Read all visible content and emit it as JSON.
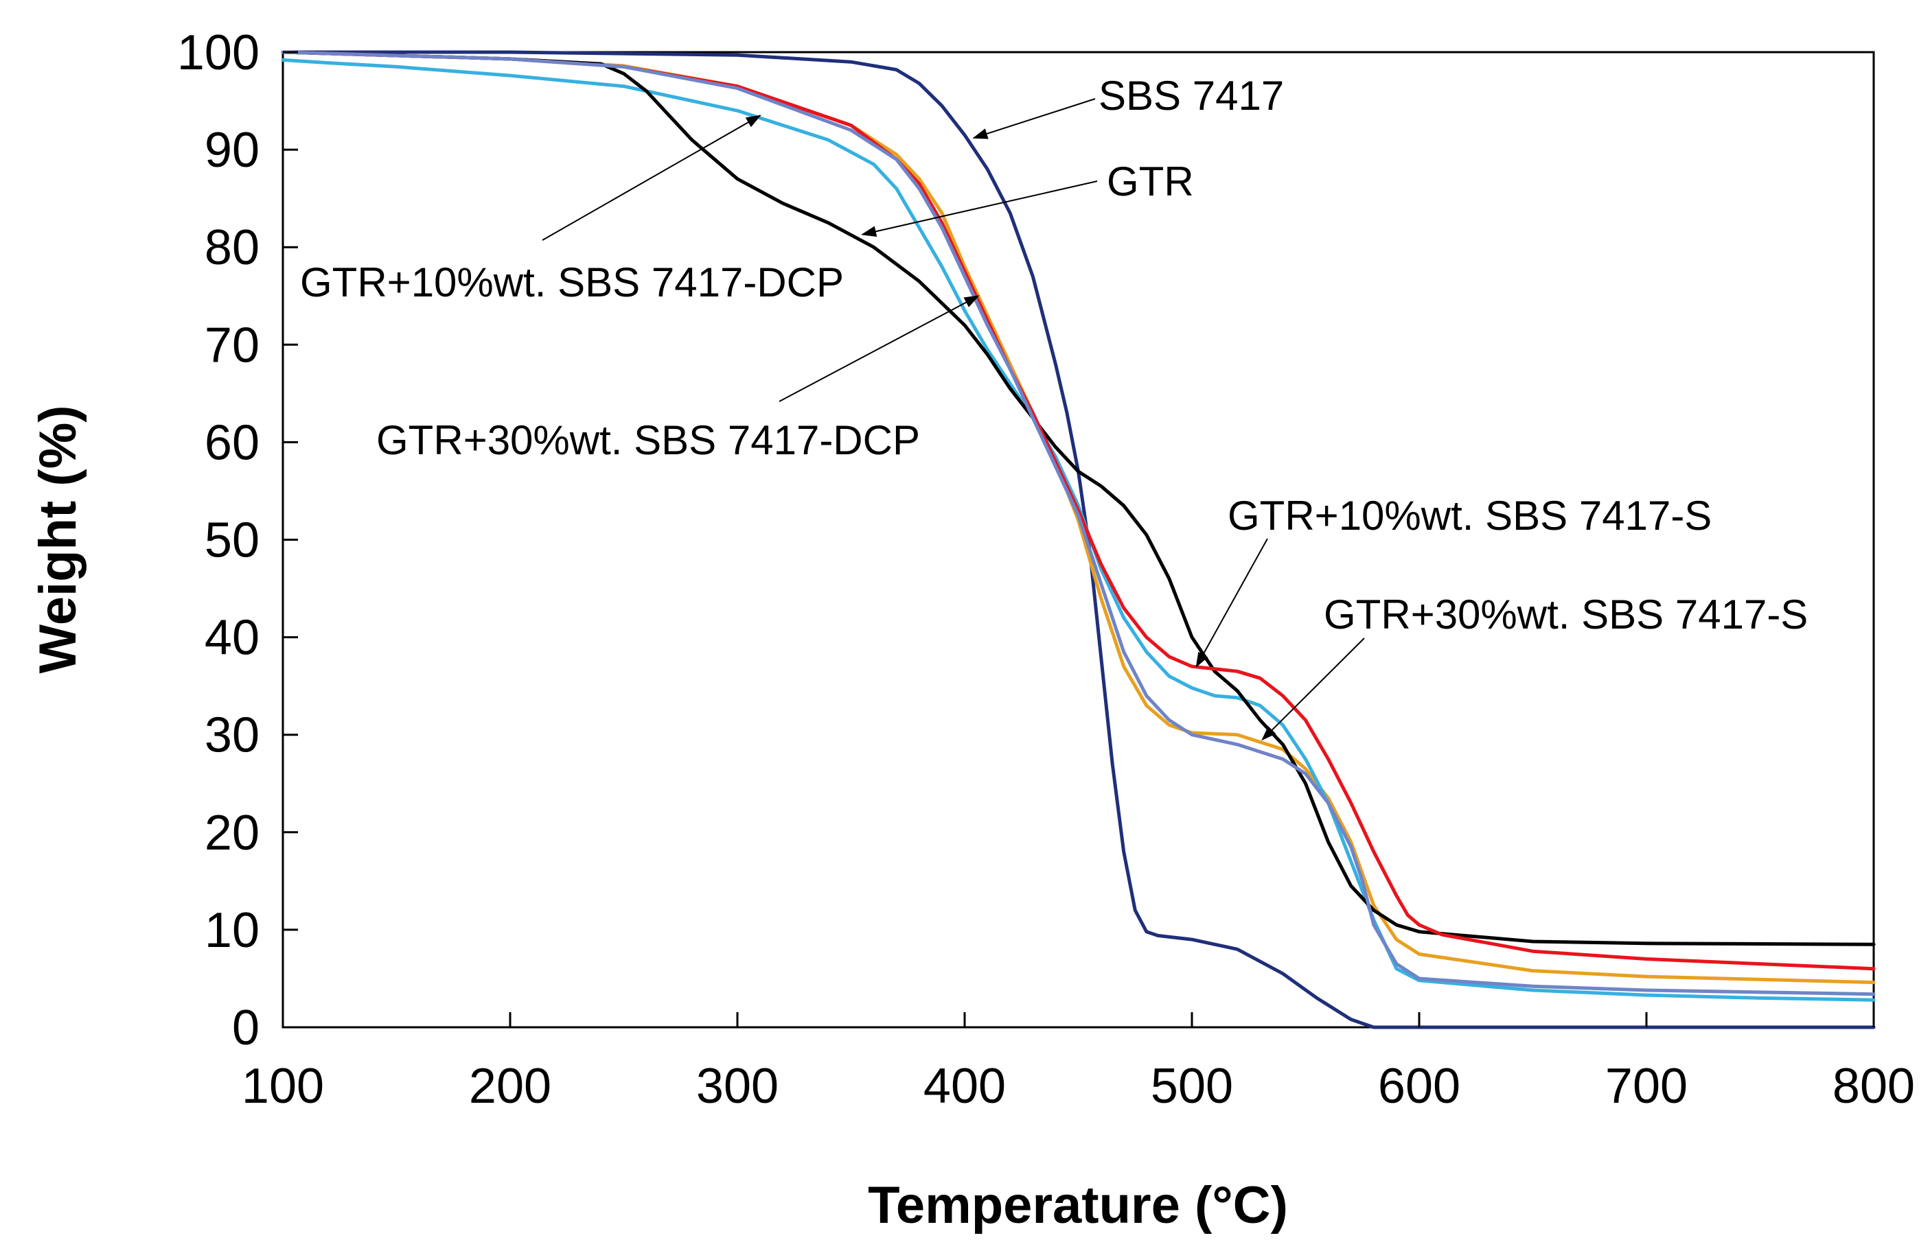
{
  "chart_data": {
    "type": "line",
    "title": "",
    "xlabel": "Temperature (°C)",
    "ylabel": "Weight (%)",
    "xlim": [
      100,
      800
    ],
    "ylim": [
      0,
      100
    ],
    "x_ticks": [
      "100",
      "200",
      "300",
      "400",
      "500",
      "600",
      "700",
      "800"
    ],
    "y_ticks": [
      "0",
      "10",
      "20",
      "30",
      "40",
      "50",
      "60",
      "70",
      "80",
      "90",
      "100"
    ],
    "grid": false,
    "legend": "none",
    "series": [
      {
        "name": "SBS 7417",
        "color": "#1f2f7a",
        "points": [
          [
            100,
            100
          ],
          [
            200,
            100
          ],
          [
            300,
            99.7
          ],
          [
            350,
            99.0
          ],
          [
            370,
            98.2
          ],
          [
            380,
            96.8
          ],
          [
            390,
            94.5
          ],
          [
            400,
            91.5
          ],
          [
            410,
            88.0
          ],
          [
            420,
            83.5
          ],
          [
            430,
            77.0
          ],
          [
            440,
            68.0
          ],
          [
            445,
            63.0
          ],
          [
            450,
            57.0
          ],
          [
            455,
            49.0
          ],
          [
            460,
            38.0
          ],
          [
            465,
            27.0
          ],
          [
            470,
            18.0
          ],
          [
            475,
            12.0
          ],
          [
            480,
            9.8
          ],
          [
            485,
            9.4
          ],
          [
            500,
            9.0
          ],
          [
            520,
            8.0
          ],
          [
            540,
            5.5
          ],
          [
            555,
            3.0
          ],
          [
            570,
            0.8
          ],
          [
            580,
            0
          ],
          [
            650,
            0
          ],
          [
            800,
            0
          ]
        ]
      },
      {
        "name": "GTR",
        "color": "#e8a020",
        "points": [
          [
            100,
            100
          ],
          [
            200,
            99.3
          ],
          [
            250,
            98.6
          ],
          [
            300,
            96.5
          ],
          [
            350,
            92.5
          ],
          [
            370,
            89.5
          ],
          [
            380,
            87.0
          ],
          [
            390,
            83.5
          ],
          [
            400,
            78.0
          ],
          [
            410,
            73.0
          ],
          [
            420,
            68.0
          ],
          [
            430,
            63.0
          ],
          [
            440,
            58.0
          ],
          [
            450,
            52.0
          ],
          [
            460,
            44.0
          ],
          [
            470,
            37.0
          ],
          [
            480,
            33.0
          ],
          [
            490,
            31.0
          ],
          [
            500,
            30.2
          ],
          [
            520,
            30.0
          ],
          [
            540,
            28.5
          ],
          [
            550,
            26.5
          ],
          [
            560,
            23.5
          ],
          [
            570,
            19.0
          ],
          [
            580,
            12.5
          ],
          [
            590,
            9.0
          ],
          [
            600,
            7.5
          ],
          [
            650,
            5.8
          ],
          [
            700,
            5.2
          ],
          [
            800,
            4.6
          ]
        ]
      },
      {
        "name": "GTR+10%wt. SBS 7417-DCP",
        "color": "#36b0e0",
        "points": [
          [
            100,
            99.2
          ],
          [
            120,
            98.9
          ],
          [
            150,
            98.5
          ],
          [
            200,
            97.6
          ],
          [
            250,
            96.5
          ],
          [
            280,
            95.0
          ],
          [
            300,
            94.0
          ],
          [
            320,
            92.5
          ],
          [
            340,
            91.0
          ],
          [
            360,
            88.5
          ],
          [
            370,
            86.0
          ],
          [
            380,
            82.0
          ],
          [
            390,
            78.0
          ],
          [
            400,
            73.5
          ],
          [
            410,
            69.5
          ],
          [
            420,
            66.0
          ],
          [
            430,
            62.5
          ],
          [
            440,
            58.5
          ],
          [
            450,
            53.5
          ],
          [
            460,
            47.0
          ],
          [
            470,
            42.0
          ],
          [
            480,
            38.5
          ],
          [
            490,
            36.0
          ],
          [
            500,
            34.8
          ],
          [
            510,
            34.0
          ],
          [
            520,
            33.8
          ],
          [
            530,
            33.0
          ],
          [
            540,
            31.0
          ],
          [
            550,
            27.5
          ],
          [
            560,
            23.0
          ],
          [
            570,
            17.0
          ],
          [
            580,
            11.0
          ],
          [
            585,
            8.5
          ],
          [
            590,
            6.0
          ],
          [
            600,
            4.8
          ],
          [
            650,
            3.8
          ],
          [
            700,
            3.3
          ],
          [
            750,
            3.0
          ],
          [
            800,
            2.8
          ]
        ]
      },
      {
        "name": "GTR+30%wt. SBS 7417-DCP",
        "color": "#000000",
        "points": [
          [
            100,
            100
          ],
          [
            200,
            99.3
          ],
          [
            240,
            98.8
          ],
          [
            250,
            97.8
          ],
          [
            260,
            96.0
          ],
          [
            270,
            93.5
          ],
          [
            280,
            91.0
          ],
          [
            290,
            89.0
          ],
          [
            300,
            87.0
          ],
          [
            320,
            84.5
          ],
          [
            340,
            82.5
          ],
          [
            360,
            80.0
          ],
          [
            380,
            76.5
          ],
          [
            400,
            72.0
          ],
          [
            410,
            69.0
          ],
          [
            420,
            65.5
          ],
          [
            430,
            62.5
          ],
          [
            440,
            59.5
          ],
          [
            450,
            57.0
          ],
          [
            460,
            55.5
          ],
          [
            470,
            53.5
          ],
          [
            480,
            50.5
          ],
          [
            490,
            46.0
          ],
          [
            500,
            40.0
          ],
          [
            510,
            36.5
          ],
          [
            520,
            34.5
          ],
          [
            530,
            31.5
          ],
          [
            540,
            29.0
          ],
          [
            550,
            25.0
          ],
          [
            560,
            19.0
          ],
          [
            570,
            14.5
          ],
          [
            580,
            12.0
          ],
          [
            590,
            10.5
          ],
          [
            600,
            9.8
          ],
          [
            650,
            8.8
          ],
          [
            700,
            8.6
          ],
          [
            800,
            8.5
          ]
        ]
      },
      {
        "name": "GTR+10%wt. SBS 7417-S",
        "color": "#e8141c",
        "points": [
          [
            100,
            100
          ],
          [
            200,
            99.3
          ],
          [
            250,
            98.5
          ],
          [
            300,
            96.5
          ],
          [
            350,
            92.5
          ],
          [
            370,
            89.0
          ],
          [
            380,
            86.5
          ],
          [
            390,
            82.5
          ],
          [
            400,
            77.5
          ],
          [
            410,
            72.5
          ],
          [
            420,
            67.5
          ],
          [
            430,
            63.0
          ],
          [
            440,
            58.0
          ],
          [
            450,
            53.0
          ],
          [
            460,
            47.5
          ],
          [
            470,
            43.0
          ],
          [
            480,
            40.0
          ],
          [
            490,
            38.0
          ],
          [
            500,
            37.0
          ],
          [
            520,
            36.5
          ],
          [
            530,
            35.8
          ],
          [
            540,
            34.0
          ],
          [
            550,
            31.5
          ],
          [
            560,
            27.5
          ],
          [
            570,
            23.0
          ],
          [
            580,
            18.0
          ],
          [
            590,
            13.5
          ],
          [
            595,
            11.5
          ],
          [
            600,
            10.5
          ],
          [
            610,
            9.5
          ],
          [
            650,
            7.8
          ],
          [
            700,
            7.0
          ],
          [
            800,
            6.0
          ]
        ]
      },
      {
        "name": "GTR+30%wt. SBS 7417-S",
        "color": "#6f84c8",
        "points": [
          [
            100,
            100
          ],
          [
            200,
            99.3
          ],
          [
            250,
            98.5
          ],
          [
            300,
            96.3
          ],
          [
            350,
            92.0
          ],
          [
            370,
            89.0
          ],
          [
            380,
            86.0
          ],
          [
            390,
            82.0
          ],
          [
            400,
            77.0
          ],
          [
            410,
            72.0
          ],
          [
            420,
            67.5
          ],
          [
            430,
            62.5
          ],
          [
            440,
            57.5
          ],
          [
            450,
            52.5
          ],
          [
            460,
            45.5
          ],
          [
            470,
            38.5
          ],
          [
            480,
            34.0
          ],
          [
            490,
            31.5
          ],
          [
            500,
            30.0
          ],
          [
            520,
            29.0
          ],
          [
            540,
            27.5
          ],
          [
            550,
            26.0
          ],
          [
            560,
            23.0
          ],
          [
            570,
            18.5
          ],
          [
            575,
            15.0
          ],
          [
            580,
            10.5
          ],
          [
            590,
            6.5
          ],
          [
            600,
            5.0
          ],
          [
            650,
            4.2
          ],
          [
            700,
            3.8
          ],
          [
            800,
            3.4
          ]
        ]
      }
    ],
    "annotations": [
      {
        "text": "SBS 7417",
        "arrow_to": [
          404,
          91.2
        ]
      },
      {
        "text": "GTR",
        "arrow_to": [
          355,
          81.3
        ]
      },
      {
        "text": "GTR+10%wt. SBS 7417-DCP",
        "arrow_to": [
          310,
          93.5
        ]
      },
      {
        "text": "GTR+30%wt. SBS 7417-DCP",
        "arrow_to": [
          406,
          75.0
        ]
      },
      {
        "text": "GTR+10%wt. SBS 7417-S",
        "arrow_to": [
          502,
          37.0
        ]
      },
      {
        "text": "GTR+30%wt. SBS 7417-S",
        "arrow_to": [
          531,
          29.5
        ]
      }
    ]
  }
}
